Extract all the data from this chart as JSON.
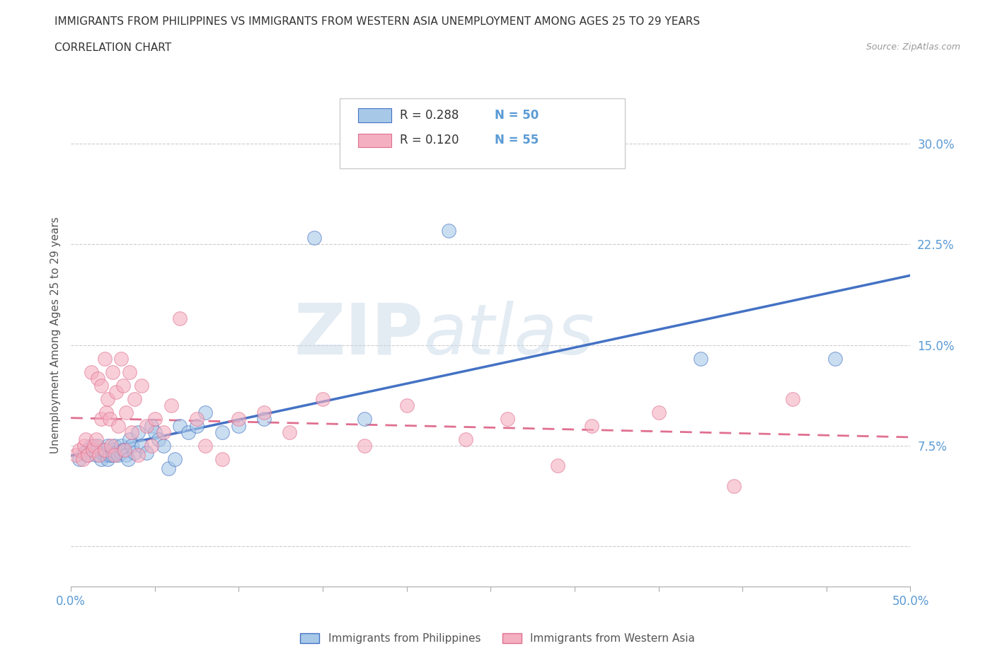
{
  "title_line1": "IMMIGRANTS FROM PHILIPPINES VS IMMIGRANTS FROM WESTERN ASIA UNEMPLOYMENT AMONG AGES 25 TO 29 YEARS",
  "title_line2": "CORRELATION CHART",
  "source": "Source: ZipAtlas.com",
  "ylabel": "Unemployment Among Ages 25 to 29 years",
  "xlim": [
    0.0,
    0.5
  ],
  "ylim": [
    -0.03,
    0.345
  ],
  "xticks": [
    0.0,
    0.05,
    0.1,
    0.15,
    0.2,
    0.25,
    0.3,
    0.35,
    0.4,
    0.45,
    0.5
  ],
  "yticks": [
    0.0,
    0.075,
    0.15,
    0.225,
    0.3
  ],
  "ytick_labels": [
    "",
    "7.5%",
    "15.0%",
    "22.5%",
    "30.0%"
  ],
  "xtick_labels": [
    "0.0%",
    "",
    "",
    "",
    "",
    "",
    "",
    "",
    "",
    "",
    "50.0%"
  ],
  "legend_label1": "Immigrants from Philippines",
  "legend_label2": "Immigrants from Western Asia",
  "color1": "#a8c8e8",
  "color2": "#f4afc0",
  "line_color1": "#4472c4",
  "line_color2": "#e07090",
  "watermark_zip": "ZIP",
  "watermark_atlas": "atlas",
  "philippines_x": [
    0.005,
    0.008,
    0.01,
    0.01,
    0.012,
    0.015,
    0.015,
    0.016,
    0.018,
    0.018,
    0.02,
    0.02,
    0.021,
    0.022,
    0.022,
    0.023,
    0.025,
    0.025,
    0.026,
    0.027,
    0.028,
    0.03,
    0.03,
    0.031,
    0.033,
    0.034,
    0.035,
    0.036,
    0.038,
    0.04,
    0.042,
    0.045,
    0.048,
    0.05,
    0.052,
    0.055,
    0.058,
    0.062,
    0.065,
    0.07,
    0.075,
    0.08,
    0.09,
    0.1,
    0.115,
    0.145,
    0.175,
    0.225,
    0.375,
    0.455
  ],
  "philippines_y": [
    0.065,
    0.07,
    0.072,
    0.068,
    0.075,
    0.068,
    0.072,
    0.075,
    0.07,
    0.065,
    0.068,
    0.072,
    0.07,
    0.065,
    0.075,
    0.068,
    0.072,
    0.068,
    0.075,
    0.07,
    0.068,
    0.075,
    0.07,
    0.072,
    0.068,
    0.065,
    0.08,
    0.075,
    0.07,
    0.085,
    0.075,
    0.07,
    0.09,
    0.085,
    0.08,
    0.075,
    0.058,
    0.065,
    0.09,
    0.085,
    0.09,
    0.1,
    0.085,
    0.09,
    0.095,
    0.23,
    0.095,
    0.235,
    0.14,
    0.14
  ],
  "western_asia_x": [
    0.003,
    0.005,
    0.007,
    0.008,
    0.009,
    0.01,
    0.012,
    0.013,
    0.014,
    0.015,
    0.016,
    0.017,
    0.018,
    0.018,
    0.02,
    0.02,
    0.021,
    0.022,
    0.023,
    0.024,
    0.025,
    0.026,
    0.027,
    0.028,
    0.03,
    0.031,
    0.032,
    0.033,
    0.035,
    0.036,
    0.038,
    0.04,
    0.042,
    0.045,
    0.048,
    0.05,
    0.055,
    0.06,
    0.065,
    0.075,
    0.08,
    0.09,
    0.1,
    0.115,
    0.13,
    0.15,
    0.175,
    0.2,
    0.235,
    0.26,
    0.29,
    0.31,
    0.35,
    0.395,
    0.43
  ],
  "western_asia_y": [
    0.068,
    0.072,
    0.065,
    0.075,
    0.08,
    0.068,
    0.13,
    0.072,
    0.075,
    0.08,
    0.125,
    0.068,
    0.095,
    0.12,
    0.14,
    0.072,
    0.1,
    0.11,
    0.095,
    0.075,
    0.13,
    0.068,
    0.115,
    0.09,
    0.14,
    0.12,
    0.072,
    0.1,
    0.13,
    0.085,
    0.11,
    0.068,
    0.12,
    0.09,
    0.075,
    0.095,
    0.085,
    0.105,
    0.17,
    0.095,
    0.075,
    0.065,
    0.095,
    0.1,
    0.085,
    0.11,
    0.075,
    0.105,
    0.08,
    0.095,
    0.06,
    0.09,
    0.1,
    0.045,
    0.11
  ]
}
